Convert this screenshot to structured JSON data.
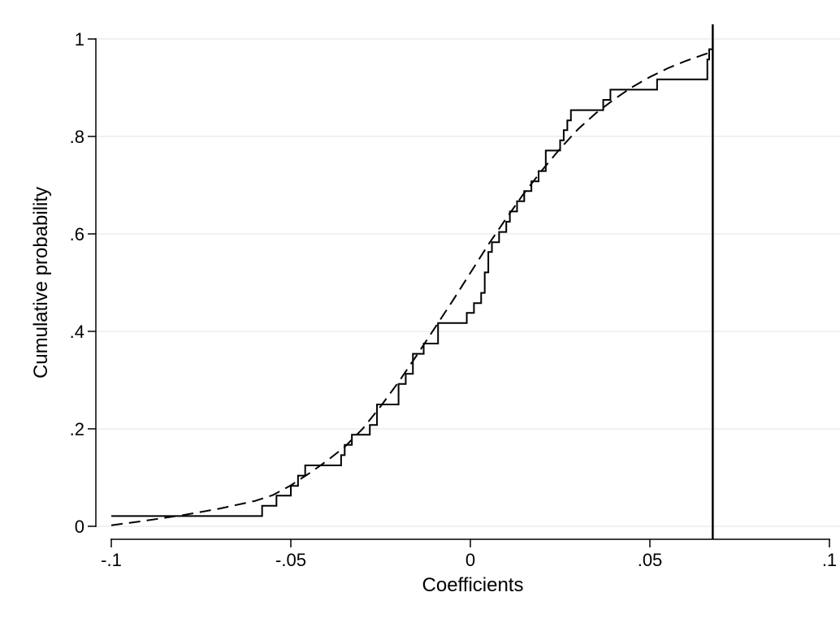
{
  "chart_data": {
    "type": "line",
    "title": "",
    "xlabel": "Coefficients",
    "ylabel": "Cumulative probability",
    "xlim": [
      -0.1,
      0.1
    ],
    "ylim": [
      0,
      1
    ],
    "x_ticks": [
      -0.1,
      -0.05,
      0,
      0.05,
      0.1
    ],
    "x_tick_labels": [
      "-.1",
      "-.05",
      "0",
      ".05",
      ".1"
    ],
    "y_ticks": [
      0,
      0.2,
      0.4,
      0.6,
      0.8,
      1
    ],
    "y_tick_labels": [
      "0",
      ".2",
      ".4",
      ".6",
      ".8",
      "1"
    ],
    "grid": "horizontal",
    "legend": "none",
    "reference_line": {
      "orientation": "vertical",
      "x": 0.0675
    },
    "colors": {
      "line": "#000000",
      "grid": "#e6eef2",
      "axis": "#000000"
    },
    "series": [
      {
        "style": "solid-step",
        "x": [
          -0.1,
          -0.058,
          -0.058,
          -0.054,
          -0.054,
          -0.05,
          -0.05,
          -0.048,
          -0.048,
          -0.046,
          -0.046,
          -0.044,
          -0.044,
          -0.036,
          -0.036,
          -0.035,
          -0.035,
          -0.033,
          -0.033,
          -0.031,
          -0.031,
          -0.028,
          -0.028,
          -0.026,
          -0.026,
          -0.022,
          -0.022,
          -0.02,
          -0.02,
          -0.018,
          -0.018,
          -0.016,
          -0.016,
          -0.013,
          -0.013,
          -0.009,
          -0.009,
          -0.004,
          -0.004,
          -0.001,
          -0.001,
          0.001,
          0.001,
          0.003,
          0.003,
          0.004,
          0.004,
          0.005,
          0.005,
          0.006,
          0.006,
          0.008,
          0.008,
          0.01,
          0.01,
          0.011,
          0.011,
          0.013,
          0.013,
          0.015,
          0.015,
          0.017,
          0.017,
          0.019,
          0.019,
          0.021,
          0.021,
          0.025,
          0.025,
          0.026,
          0.026,
          0.027,
          0.027,
          0.028,
          0.028,
          0.037,
          0.037,
          0.039,
          0.039,
          0.04,
          0.04,
          0.052,
          0.052,
          0.066,
          0.066,
          0.0665,
          0.0665,
          0.0675
        ],
        "y": [
          0.021,
          0.021,
          0.042,
          0.042,
          0.063,
          0.063,
          0.083,
          0.083,
          0.104,
          0.104,
          0.125,
          0.125,
          0.125,
          0.125,
          0.146,
          0.146,
          0.167,
          0.167,
          0.188,
          0.188,
          0.188,
          0.188,
          0.208,
          0.208,
          0.25,
          0.25,
          0.25,
          0.25,
          0.292,
          0.292,
          0.313,
          0.313,
          0.354,
          0.354,
          0.375,
          0.375,
          0.417,
          0.417,
          0.417,
          0.417,
          0.438,
          0.438,
          0.458,
          0.458,
          0.479,
          0.479,
          0.521,
          0.521,
          0.563,
          0.563,
          0.583,
          0.583,
          0.604,
          0.604,
          0.625,
          0.625,
          0.646,
          0.646,
          0.667,
          0.667,
          0.688,
          0.688,
          0.708,
          0.708,
          0.729,
          0.729,
          0.771,
          0.771,
          0.792,
          0.792,
          0.813,
          0.813,
          0.833,
          0.833,
          0.854,
          0.854,
          0.875,
          0.875,
          0.896,
          0.896,
          0.896,
          0.896,
          0.917,
          0.917,
          0.958,
          0.958,
          0.979,
          0.979
        ]
      },
      {
        "style": "dashed",
        "x": [
          -0.1,
          -0.09,
          -0.08,
          -0.07,
          -0.06,
          -0.055,
          -0.05,
          -0.045,
          -0.04,
          -0.035,
          -0.03,
          -0.025,
          -0.02,
          -0.015,
          -0.01,
          -0.005,
          0,
          0.005,
          0.01,
          0.015,
          0.02,
          0.025,
          0.03,
          0.035,
          0.04,
          0.045,
          0.05,
          0.055,
          0.06,
          0.065,
          0.0675
        ],
        "y": [
          0.002,
          0.012,
          0.023,
          0.036,
          0.052,
          0.064,
          0.084,
          0.108,
          0.134,
          0.163,
          0.2,
          0.246,
          0.296,
          0.35,
          0.406,
          0.462,
          0.52,
          0.578,
          0.632,
          0.684,
          0.731,
          0.775,
          0.815,
          0.848,
          0.876,
          0.901,
          0.922,
          0.94,
          0.955,
          0.968,
          0.974
        ]
      }
    ]
  }
}
